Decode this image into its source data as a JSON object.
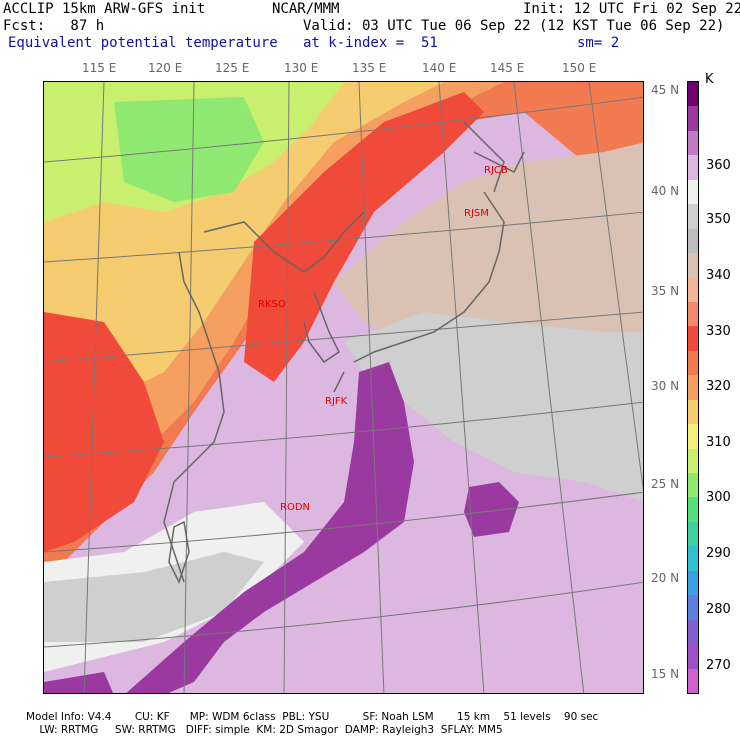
{
  "header": {
    "left1": "ACCLIP 15km ARW-GFS init",
    "center1": "NCAR/MMM",
    "right1": "Init: 12 UTC Fri 02 Sep 22",
    "left2": "Fcst:   87 h",
    "right2": "Valid: 03 UTC Tue 06 Sep 22 (12 KST Tue 06 Sep 22)",
    "field": "Equivalent potential temperature",
    "kindex": "at k-index =  51",
    "sm": "sm= 2"
  },
  "map": {
    "lon_labels": [
      "115 E",
      "120 E",
      "125 E",
      "130 E",
      "135 E",
      "140 E",
      "145 E",
      "150 E"
    ],
    "lat_labels": [
      "45 N",
      "40 N",
      "35 N",
      "30 N",
      "25 N",
      "20 N",
      "15 N"
    ],
    "stations": [
      {
        "id": "RJCB"
      },
      {
        "id": "RJSM"
      },
      {
        "id": "RKSO"
      },
      {
        "id": "RJFK"
      },
      {
        "id": "RODN"
      }
    ]
  },
  "colorbar": {
    "unit": "K",
    "labels": [
      "360",
      "350",
      "340",
      "330",
      "320",
      "310",
      "300",
      "290",
      "280",
      "270"
    ],
    "colors": [
      "#700070",
      "#9a3aa0",
      "#c07ac8",
      "#dcb8e0",
      "#f0f0f0",
      "#cfcfcf",
      "#bdbdbd",
      "#d9c2b4",
      "#f4b49a",
      "#f58a6a",
      "#f04a3a",
      "#f27a50",
      "#f5a060",
      "#f5cc70",
      "#f2f078",
      "#c8f06e",
      "#8fe872",
      "#55e07a",
      "#40d0a0",
      "#30c0d0",
      "#3aa0e0",
      "#5a80e0",
      "#8060d0",
      "#a050c8",
      "#d060d0"
    ]
  },
  "footer": {
    "line1": "Model Info: V4.4       CU: KF      MP: WDM 6class  PBL: YSU          SF: Noah LSM       15 km    51 levels    90 sec",
    "line2": "    LW: RRTMG     SW: RRTMG   DIFF: simple  KM: 2D Smagor  DAMP: Rayleigh3  SFLAY: MM5"
  }
}
